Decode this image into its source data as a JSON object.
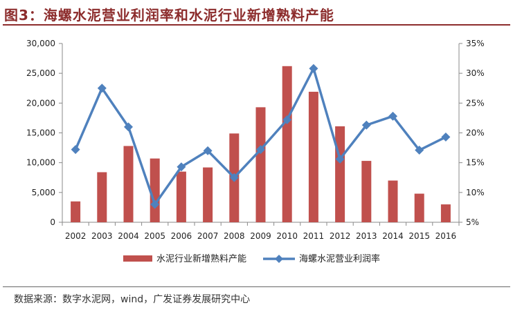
{
  "header": {
    "title": "图3：海螺水泥营业利润率和水泥行业新增熟料产能"
  },
  "footer": {
    "source": "数据来源：数字水泥网，wind，广发证券发展研究中心"
  },
  "chart_data": {
    "type": "bar",
    "categories": [
      "2002",
      "2003",
      "2004",
      "2005",
      "2006",
      "2007",
      "2008",
      "2009",
      "2010",
      "2011",
      "2012",
      "2013",
      "2014",
      "2015",
      "2016"
    ],
    "series": [
      {
        "name": "水泥行业新增熟料产能",
        "type": "bar",
        "axis": "left",
        "color": "#c0504d",
        "values": [
          3500,
          8400,
          12800,
          10700,
          8500,
          9200,
          14900,
          19300,
          26200,
          21900,
          16100,
          10300,
          7000,
          4800,
          3000
        ]
      },
      {
        "name": "海螺水泥营业利润率",
        "type": "line",
        "axis": "right",
        "color": "#4f81bd",
        "values": [
          17.2,
          27.5,
          21.0,
          8.0,
          14.3,
          17.0,
          12.5,
          17.2,
          22.2,
          30.8,
          15.6,
          21.3,
          22.8,
          17.1,
          19.3
        ]
      }
    ],
    "y_left": {
      "ylim": [
        0,
        30000
      ],
      "ticks": [
        "0",
        "5,000",
        "10,000",
        "15,000",
        "20,000",
        "25,000",
        "30,000"
      ]
    },
    "y_right": {
      "ylim": [
        5,
        35
      ],
      "ticks": [
        "5%",
        "10%",
        "15%",
        "20%",
        "25%",
        "30%",
        "35%"
      ]
    },
    "legend_position": "bottom",
    "grid": false,
    "title": "",
    "xlabel": "",
    "ylabel": ""
  }
}
